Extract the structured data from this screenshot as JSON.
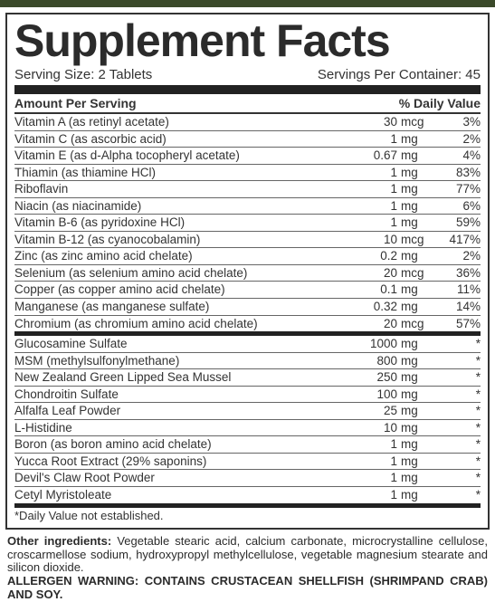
{
  "title": "Supplement Facts",
  "serving_size_label": "Serving Size: 2 Tablets",
  "servings_per_container_label": "Servings Per Container: 45",
  "header": {
    "amount": "Amount Per Serving",
    "dv": "% Daily Value"
  },
  "section1": [
    {
      "name": "Vitamin A (as retinyl acetate)",
      "amt": "30",
      "unit": "mcg",
      "dv": "3%"
    },
    {
      "name": "Vitamin C (as ascorbic acid)",
      "amt": "1",
      "unit": "mg",
      "dv": "2%"
    },
    {
      "name": "Vitamin E (as d-Alpha tocopheryl acetate)",
      "amt": "0.67",
      "unit": "mg",
      "dv": "4%"
    },
    {
      "name": "Thiamin (as thiamine HCl)",
      "amt": "1",
      "unit": "mg",
      "dv": "83%"
    },
    {
      "name": "Riboflavin",
      "amt": "1",
      "unit": "mg",
      "dv": "77%"
    },
    {
      "name": "Niacin (as niacinamide)",
      "amt": "1",
      "unit": "mg",
      "dv": "6%"
    },
    {
      "name": "Vitamin B-6 (as pyridoxine HCl)",
      "amt": "1",
      "unit": "mg",
      "dv": "59%"
    },
    {
      "name": "Vitamin B-12 (as cyanocobalamin)",
      "amt": "10",
      "unit": "mcg",
      "dv": "417%"
    },
    {
      "name": "Zinc (as zinc amino acid chelate)",
      "amt": "0.2",
      "unit": "mg",
      "dv": "2%"
    },
    {
      "name": "Selenium (as selenium amino acid chelate)",
      "amt": "20",
      "unit": "mcg",
      "dv": "36%"
    },
    {
      "name": "Copper (as copper amino acid chelate)",
      "amt": "0.1",
      "unit": "mg",
      "dv": "11%"
    },
    {
      "name": "Manganese (as manganese sulfate)",
      "amt": "0.32",
      "unit": "mg",
      "dv": "14%"
    },
    {
      "name": "Chromium (as chromium amino acid chelate)",
      "amt": "20",
      "unit": "mcg",
      "dv": "57%"
    }
  ],
  "section2": [
    {
      "name": "Glucosamine Sulfate",
      "amt": "1000",
      "unit": "mg",
      "dv": "*"
    },
    {
      "name": "MSM (methylsulfonylmethane)",
      "amt": "800",
      "unit": "mg",
      "dv": "*"
    },
    {
      "name": "New Zealand Green Lipped Sea Mussel",
      "amt": "250",
      "unit": "mg",
      "dv": "*"
    },
    {
      "name": "Chondroitin Sulfate",
      "amt": "100",
      "unit": "mg",
      "dv": "*"
    },
    {
      "name": "Alfalfa Leaf Powder",
      "amt": "25",
      "unit": "mg",
      "dv": "*"
    },
    {
      "name": "L-Histidine",
      "amt": "10",
      "unit": "mg",
      "dv": "*"
    },
    {
      "name": "Boron (as boron amino acid chelate)",
      "amt": "1",
      "unit": "mg",
      "dv": "*"
    },
    {
      "name": "Yucca Root Extract (29% saponins)",
      "amt": "1",
      "unit": "mg",
      "dv": "*"
    },
    {
      "name": "Devil's Claw Root Powder",
      "amt": "1",
      "unit": "mg",
      "dv": "*"
    },
    {
      "name": "Cetyl Myristoleate",
      "amt": "1",
      "unit": "mg",
      "dv": "*"
    }
  ],
  "footnote": "*Daily Value not established.",
  "other_label": "Other ingredients:",
  "other_text": " Vegetable stearic acid, calcium carbonate, microcrystalline cellulose, croscarmellose sodium, hydroxypropyl methylcellulose, vegetable magnesium stearate and silicon dioxide.",
  "allergen": "ALLERGEN WARNING: CONTAINS CRUSTACEAN SHELLFISH (SHRIMPAND CRAB) AND SOY."
}
